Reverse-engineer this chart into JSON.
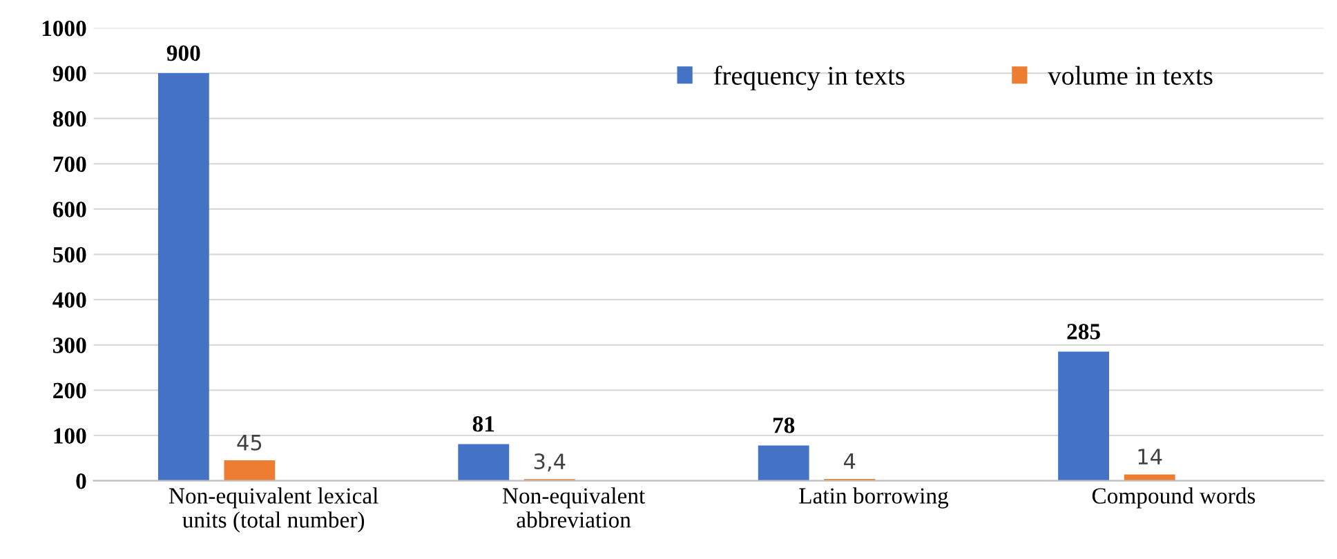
{
  "chart_data": {
    "type": "bar",
    "categories": [
      "Non-equivalent lexical\nunits (total number)",
      "Non-equivalent\nabbreviation",
      "Latin borrowing",
      "Compound words"
    ],
    "series": [
      {
        "name": "frequency in texts",
        "color": "#4472c4",
        "values": [
          900,
          81,
          78,
          285
        ],
        "value_labels": [
          "900",
          "81",
          "78",
          "285"
        ]
      },
      {
        "name": "volume in texts",
        "color": "#ed7d31",
        "values": [
          45,
          3.4,
          4,
          14
        ],
        "value_labels": [
          "45",
          "3,4",
          "4",
          "14"
        ]
      }
    ],
    "ylim": [
      0,
      1000
    ],
    "yticks": [
      0,
      100,
      200,
      300,
      400,
      500,
      600,
      700,
      800,
      900,
      1000
    ],
    "grid": "y",
    "legend": "top right"
  }
}
